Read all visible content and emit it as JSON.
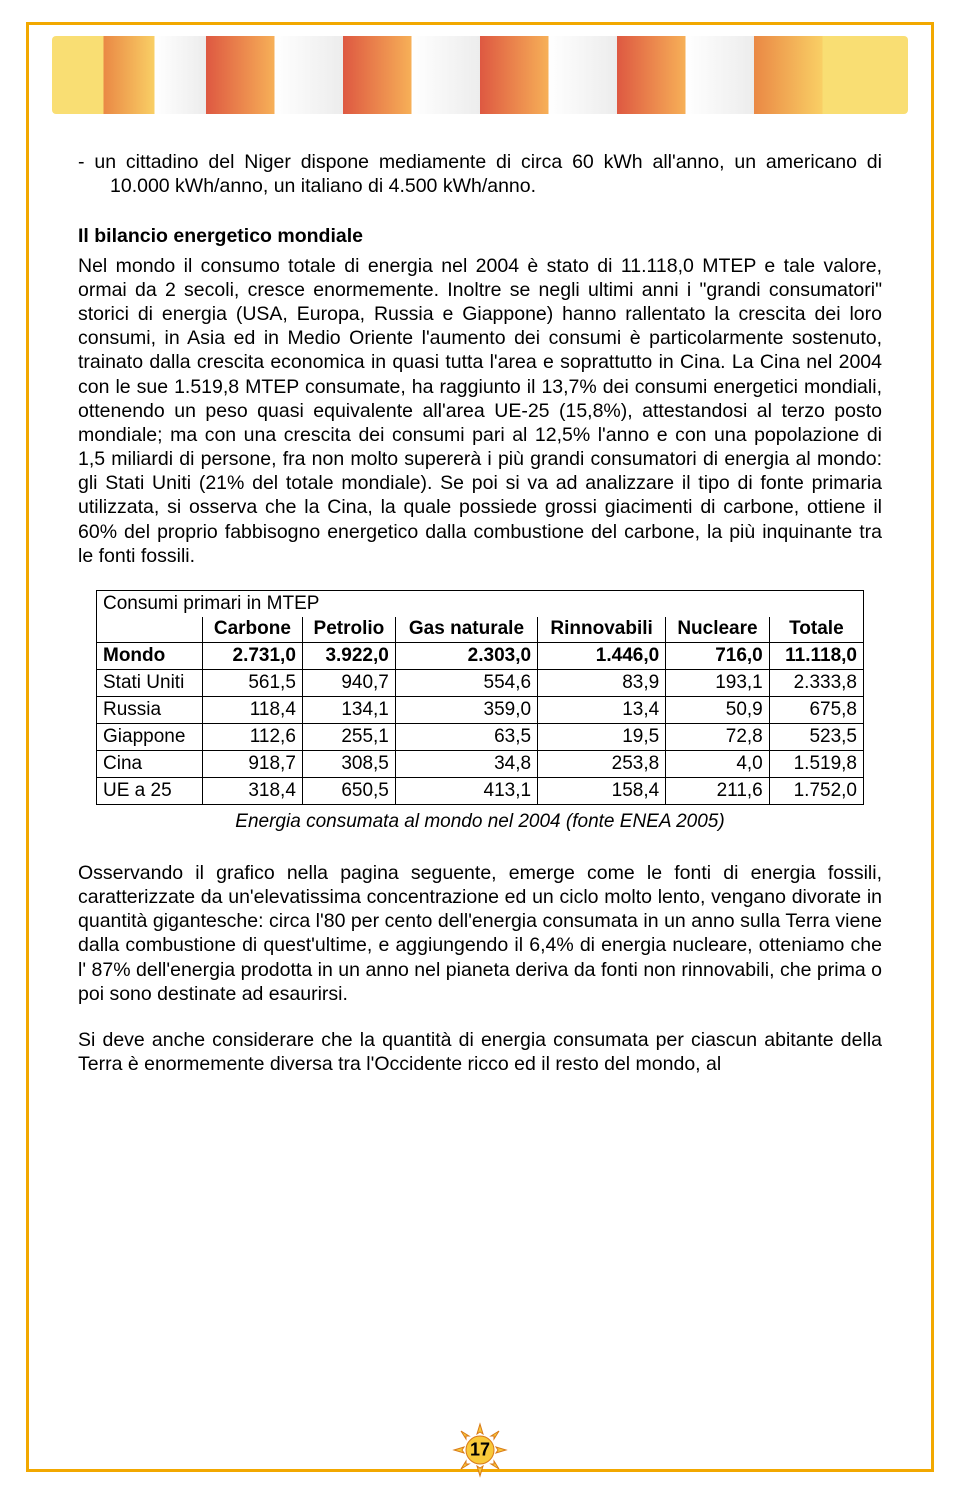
{
  "bullet_line": "-   un cittadino del Niger dispone mediamente di circa 60 kWh all'anno, un americano di 10.000 kWh/anno, un italiano di 4.500 kWh/anno.",
  "heading": "Il bilancio energetico mondiale",
  "para1": "Nel mondo il consumo totale di energia nel 2004 è stato di 11.118,0 MTEP e tale valore, ormai da 2 secoli, cresce enormemente. Inoltre se negli ultimi anni i \"grandi consumatori\" storici di energia (USA, Europa, Russia e Giappone) hanno rallentato la crescita dei loro consumi, in Asia ed in Medio Oriente l'aumento dei consumi è particolarmente sostenuto, trainato dalla crescita economica in quasi tutta l'area e soprattutto in Cina. La Cina nel 2004 con le sue 1.519,8 MTEP consumate, ha raggiunto il 13,7% dei consumi energetici mondiali, ottenendo un peso quasi equivalente all'area UE-25 (15,8%), attestandosi al terzo posto mondiale; ma con una crescita dei consumi pari al 12,5% l'anno e con una popolazione di 1,5 miliardi di persone, fra non molto supererà i più grandi consumatori di energia al mondo: gli Stati Uniti (21% del totale mondiale). Se poi si va ad analizzare il tipo di fonte primaria utilizzata, si osserva che la Cina, la quale possiede grossi giacimenti di carbone, ottiene il 60% del proprio fabbisogno energetico dalla combustione del carbone, la più inquinante tra le fonti fossili.",
  "table": {
    "title": "Consumi primari in MTEP",
    "columns": [
      "",
      "Carbone",
      "Petrolio",
      "Gas naturale",
      "Rinnovabili",
      "Nucleare",
      "Totale"
    ],
    "rows": [
      {
        "label": "Mondo",
        "bold": true,
        "cells": [
          "2.731,0",
          "3.922,0",
          "2.303,0",
          "1.446,0",
          "716,0",
          "11.118,0"
        ]
      },
      {
        "label": "Stati Uniti",
        "bold": false,
        "cells": [
          "561,5",
          "940,7",
          "554,6",
          "83,9",
          "193,1",
          "2.333,8"
        ]
      },
      {
        "label": "Russia",
        "bold": false,
        "cells": [
          "118,4",
          "134,1",
          "359,0",
          "13,4",
          "50,9",
          "675,8"
        ]
      },
      {
        "label": "Giappone",
        "bold": false,
        "cells": [
          "112,6",
          "255,1",
          "63,5",
          "19,5",
          "72,8",
          "523,5"
        ]
      },
      {
        "label": "Cina",
        "bold": false,
        "cells": [
          "918,7",
          "308,5",
          "34,8",
          "253,8",
          "4,0",
          "1.519,8"
        ]
      },
      {
        "label": "UE a 25",
        "bold": false,
        "cells": [
          "318,4",
          "650,5",
          "413,1",
          "158,4",
          "211,6",
          "1.752,0"
        ]
      }
    ],
    "caption": "Energia consumata al mondo nel 2004 (fonte ENEA 2005)"
  },
  "para2": "Osservando il grafico nella pagina seguente, emerge come le fonti di energia fossili, caratterizzate da un'elevatissima concentrazione ed un ciclo molto lento, vengano divorate in quantità gigantesche: circa l'80 per cento dell'energia consumata in un anno sulla Terra viene dalla combustione di quest'ultime, e aggiungendo il 6,4% di energia nucleare, otteniamo che l' 87% dell'energia prodotta in un anno nel pianeta deriva da fonti non rinnovabili, che prima o poi sono destinate ad esaurirsi.",
  "para3": "Si deve anche considerare che la quantità di energia consumata per ciascun abitante della Terra è enormemente diversa tra l'Occidente ricco ed il resto del mondo, al",
  "page_number": "17",
  "colors": {
    "border": "#f2a800",
    "text": "#000000",
    "sun_fill": "#f8c93a",
    "sun_stroke": "#d97a18"
  }
}
